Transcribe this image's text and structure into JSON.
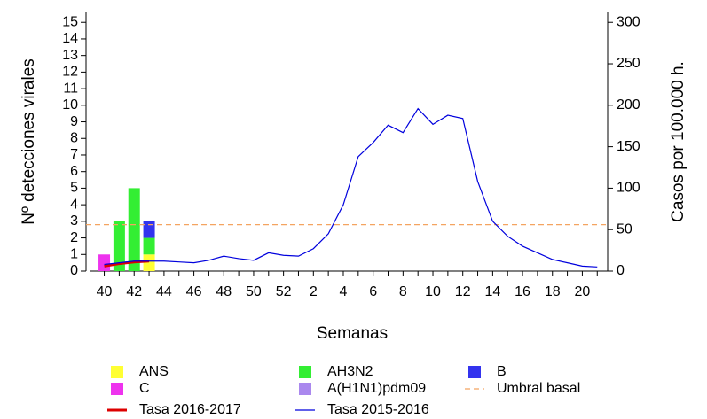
{
  "chart_data": {
    "type": "bar",
    "x_label": "Semanas",
    "y_label": "Nº detecciones virales",
    "y2_label": "Casos por 100.000 h.",
    "categories": [
      "40",
      null,
      "42",
      null,
      "44",
      null,
      "46",
      null,
      "48",
      null,
      "50",
      null,
      "52",
      null,
      "2",
      null,
      "4",
      null,
      "6",
      null,
      "8",
      null,
      "10",
      null,
      "12",
      null,
      "14",
      null,
      "16",
      null,
      "18",
      null,
      "20",
      null
    ],
    "ylim": [
      0,
      15.6
    ],
    "yticks": [
      0,
      1,
      2,
      3,
      4,
      5,
      6,
      7,
      8,
      9,
      10,
      11,
      12,
      13,
      14,
      15
    ],
    "y2lim": [
      0,
      312
    ],
    "y2ticks": [
      0,
      50,
      100,
      150,
      200,
      250,
      300
    ],
    "series": [
      {
        "name": "ANS",
        "kind": "bar",
        "color": "#ffff33",
        "values": [
          null,
          null,
          null,
          1,
          null,
          null,
          null,
          null,
          null,
          null,
          null,
          null,
          null,
          null,
          null,
          null,
          null,
          null,
          null,
          null,
          null,
          null,
          null,
          null,
          null,
          null,
          null,
          null,
          null,
          null,
          null,
          null,
          null,
          null
        ]
      },
      {
        "name": "AH3N2",
        "kind": "bar",
        "color": "#33ee33",
        "values": [
          null,
          3,
          5,
          1,
          null,
          null,
          null,
          null,
          null,
          null,
          null,
          null,
          null,
          null,
          null,
          null,
          null,
          null,
          null,
          null,
          null,
          null,
          null,
          null,
          null,
          null,
          null,
          null,
          null,
          null,
          null,
          null,
          null,
          null
        ]
      },
      {
        "name": "B",
        "kind": "bar",
        "color": "#3333ee",
        "values": [
          null,
          null,
          null,
          1,
          null,
          null,
          null,
          null,
          null,
          null,
          null,
          null,
          null,
          null,
          null,
          null,
          null,
          null,
          null,
          null,
          null,
          null,
          null,
          null,
          null,
          null,
          null,
          null,
          null,
          null,
          null,
          null,
          null,
          null
        ]
      },
      {
        "name": "C",
        "kind": "bar",
        "color": "#ee33ee",
        "values": [
          1,
          null,
          null,
          null,
          null,
          null,
          null,
          null,
          null,
          null,
          null,
          null,
          null,
          null,
          null,
          null,
          null,
          null,
          null,
          null,
          null,
          null,
          null,
          null,
          null,
          null,
          null,
          null,
          null,
          null,
          null,
          null,
          null,
          null
        ]
      },
      {
        "name": "A(H1N1)pdm09",
        "kind": "bar",
        "color": "#aa88ee",
        "values": [
          null,
          null,
          null,
          null,
          null,
          null,
          null,
          null,
          null,
          null,
          null,
          null,
          null,
          null,
          null,
          null,
          null,
          null,
          null,
          null,
          null,
          null,
          null,
          null,
          null,
          null,
          null,
          null,
          null,
          null,
          null,
          null,
          null,
          null
        ]
      },
      {
        "name": "Umbral basal",
        "kind": "hline",
        "axis": "y2",
        "color": "#f4a460",
        "value": 56
      },
      {
        "name": "Tasa 2016-2017",
        "kind": "line",
        "axis": "y2",
        "color": "#dd0000",
        "width": 3,
        "values": [
          6,
          9,
          11,
          12,
          null,
          null,
          null,
          null,
          null,
          null,
          null,
          null,
          null,
          null,
          null,
          null,
          null,
          null,
          null,
          null,
          null,
          null,
          null,
          null,
          null,
          null,
          null,
          null,
          null,
          null,
          null,
          null,
          null,
          null
        ]
      },
      {
        "name": "Tasa 2015-2016",
        "kind": "line",
        "axis": "y2",
        "color": "#0000dd",
        "width": 1.2,
        "values": [
          8,
          10,
          12,
          12,
          12,
          11,
          10,
          13,
          18,
          15,
          13,
          22,
          19,
          18,
          27,
          45,
          80,
          138,
          155,
          176,
          167,
          196,
          177,
          188,
          184,
          108,
          60,
          42,
          30,
          22,
          14,
          10,
          6,
          5
        ]
      }
    ]
  }
}
